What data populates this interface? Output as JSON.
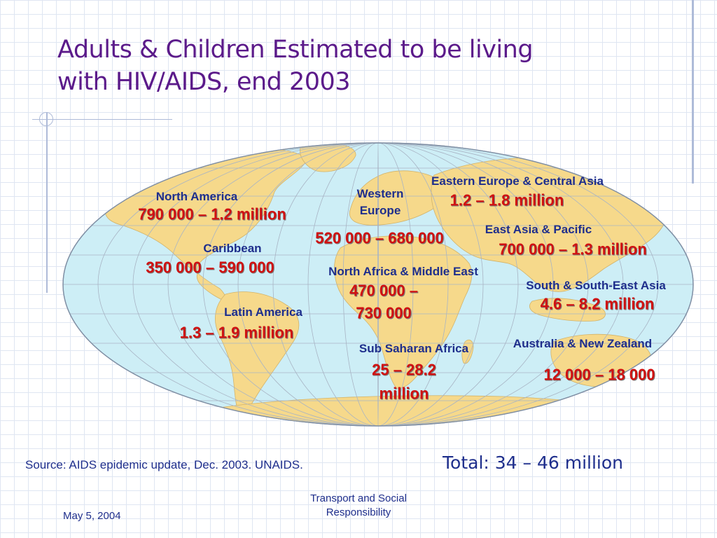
{
  "slide": {
    "title_lines": [
      "Adults & Children Estimated to be living",
      "with HIV/AIDS, end 2003"
    ],
    "source": "Source: AIDS epidemic update, Dec. 2003.  UNAIDS.",
    "total": "Total: 34 – 46 million",
    "footer_date": "May 5, 2004",
    "footer_center_lines": [
      "Transport and Social",
      "Responsibility"
    ]
  },
  "colors": {
    "title": "#5b1a8a",
    "label": "#1e2e8c",
    "value": "#d01111",
    "ocean": "#cdeef6",
    "land": "#f6d98b"
  },
  "regions": [
    {
      "id": "north-america",
      "name_lines": [
        "North America"
      ],
      "value_lines": [
        "790 000 – 1.2 million"
      ]
    },
    {
      "id": "caribbean",
      "name_lines": [
        "Caribbean"
      ],
      "value_lines": [
        "350 000 – 590 000"
      ]
    },
    {
      "id": "latin-america",
      "name_lines": [
        "Latin America"
      ],
      "value_lines": [
        "1.3 – 1.9 million"
      ]
    },
    {
      "id": "western-europe",
      "name_lines": [
        "Western",
        "Europe"
      ],
      "value_lines": [
        "520 000 – 680 000"
      ]
    },
    {
      "id": "north-africa-middle-east",
      "name_lines": [
        "North Africa & Middle East"
      ],
      "value_lines": [
        "470 000 –",
        "730 000"
      ]
    },
    {
      "id": "sub-saharan-africa",
      "name_lines": [
        "Sub Saharan Africa"
      ],
      "value_lines": [
        "25 – 28.2",
        "million"
      ]
    },
    {
      "id": "eastern-europe-central-asia",
      "name_lines": [
        "Eastern Europe & Central Asia"
      ],
      "value_lines": [
        "1.2 – 1.8 million"
      ]
    },
    {
      "id": "east-asia-pacific",
      "name_lines": [
        "East Asia & Pacific"
      ],
      "value_lines": [
        "700 000 – 1.3 million"
      ]
    },
    {
      "id": "south-southeast-asia",
      "name_lines": [
        "South & South-East Asia"
      ],
      "value_lines": [
        "4.6 – 8.2 million"
      ]
    },
    {
      "id": "australia-new-zealand",
      "name_lines": [
        "Australia &  New Zealand"
      ],
      "value_lines": [
        "12 000 – 18 000"
      ]
    }
  ]
}
